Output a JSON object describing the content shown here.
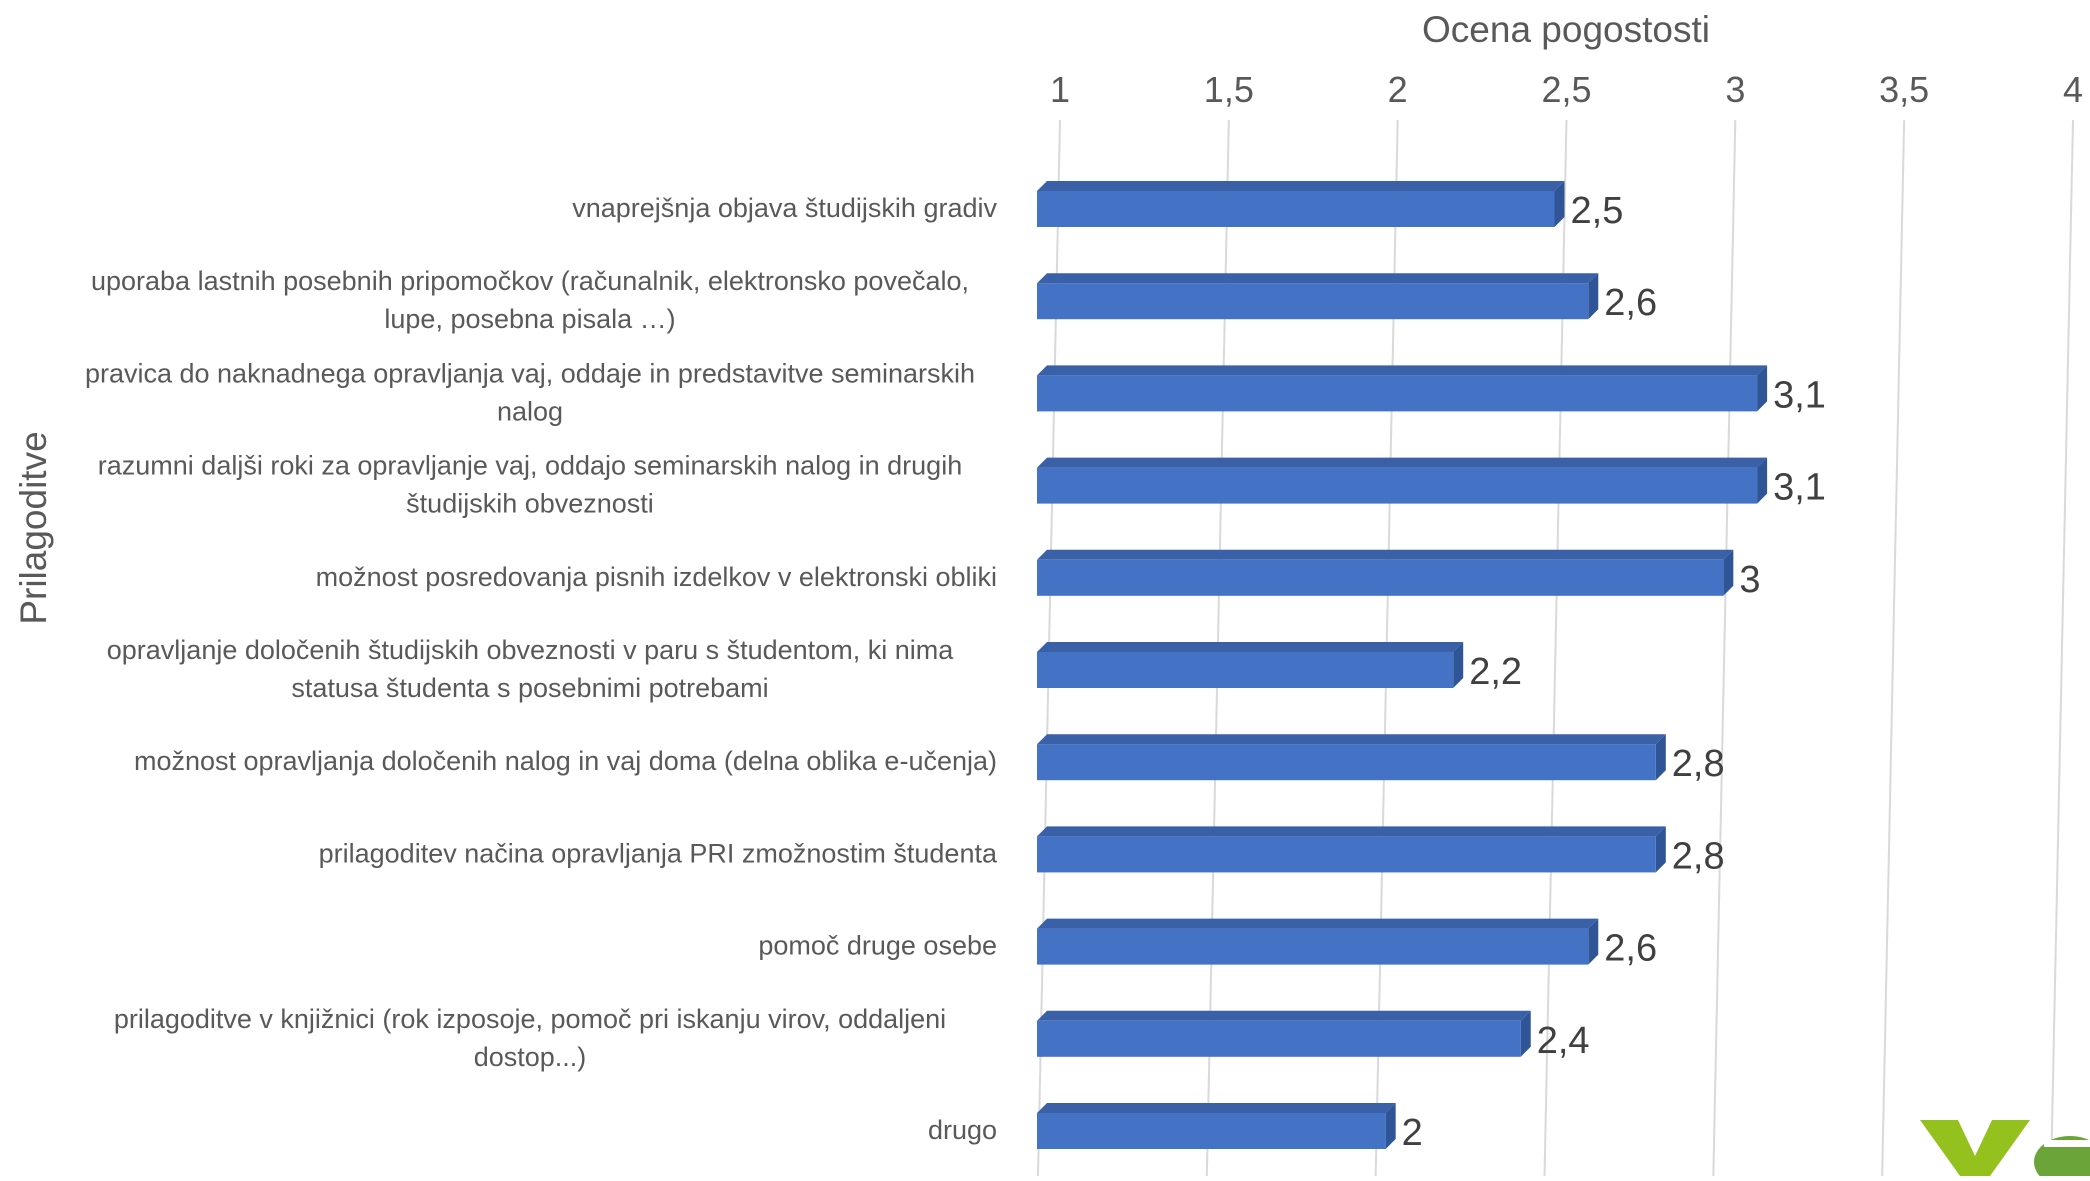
{
  "chart_data": {
    "type": "bar",
    "orientation": "horizontal",
    "title": "",
    "xlabel": "Ocena pogostosti",
    "ylabel": "Prilagoditve",
    "xlim": [
      1,
      4
    ],
    "x_ticks": [
      1,
      1.5,
      2,
      2.5,
      3,
      3.5,
      4
    ],
    "x_tick_labels": [
      "1",
      "1,5",
      "2",
      "2,5",
      "3",
      "3,5",
      "4"
    ],
    "x_axis_position": "top",
    "grid": true,
    "legend": "none",
    "bar_color": "#4472C4",
    "categories": [
      "vnaprejšnja objava študijskih gradiv",
      "uporaba lastnih posebnih pripomočkov (računalnik, elektronsko povečalo, lupe, posebna pisala …)",
      "pravica do naknadnega opravljanja vaj, oddaje in predstavitve seminarskih nalog",
      "razumni daljši roki za opravljanje vaj, oddajo seminarskih nalog in drugih študijskih obveznosti",
      "možnost posredovanja pisnih izdelkov v elektronski obliki",
      "opravljanje določenih študijskih obveznosti v paru s študentom, ki nima statusa študenta s posebnimi potrebami",
      "možnost opravljanja določenih nalog in vaj doma (delna oblika e-učenja)",
      "prilagoditev načina opravljanja PRI zmožnostim študenta",
      "pomoč druge osebe",
      "prilagoditve v knjižnici (rok izposoje, pomoč pri iskanju virov, oddaljeni dostop...)",
      "drugo"
    ],
    "category_lines": [
      [
        "vnaprejšnja objava študijskih gradiv"
      ],
      [
        "uporaba lastnih posebnih pripomočkov (računalnik, elektronsko povečalo,",
        "lupe, posebna pisala …)"
      ],
      [
        "pravica do naknadnega opravljanja vaj, oddaje in predstavitve seminarskih",
        "nalog"
      ],
      [
        "razumni daljši roki za opravljanje vaj, oddajo seminarskih nalog in drugih",
        "študijskih obveznosti"
      ],
      [
        "možnost posredovanja pisnih izdelkov v elektronski obliki"
      ],
      [
        "opravljanje določenih študijskih obveznosti v paru s študentom, ki nima",
        "statusa študenta s posebnimi potrebami"
      ],
      [
        "možnost opravljanja določenih nalog in vaj doma (delna oblika e-učenja)"
      ],
      [
        "prilagoditev načina opravljanja PRI zmožnostim študenta"
      ],
      [
        "pomoč druge osebe"
      ],
      [
        "prilagoditve v knjižnici (rok izposoje, pomoč pri iskanju virov, oddaljeni",
        "dostop...)"
      ],
      [
        "drugo"
      ]
    ],
    "values": [
      2.5,
      2.6,
      3.1,
      3.1,
      3.0,
      2.2,
      2.8,
      2.8,
      2.6,
      2.4,
      2.0
    ],
    "value_labels": [
      "2,5",
      "2,6",
      "3,1",
      "3,1",
      "3",
      "2,2",
      "2,8",
      "2,8",
      "2,6",
      "2,4",
      "2"
    ]
  },
  "logo": {
    "colors": [
      "#95C11F",
      "#6BA539"
    ]
  }
}
